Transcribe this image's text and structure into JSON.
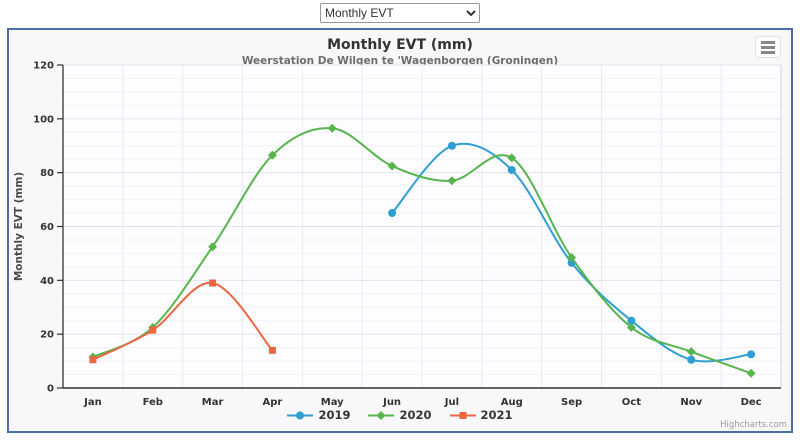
{
  "toolbar": {
    "select_value": "Monthly EVT"
  },
  "chart": {
    "menu_icon": "hamburger-menu-icon",
    "credits": "Highcharts.com",
    "background": "#f8f8fb",
    "plot_background": "#fdfdff",
    "border_color": "#4a6fa5"
  },
  "chart_data": {
    "type": "line",
    "title": "Monthly EVT (mm)",
    "subtitle": "Weerstation De Wilgen te 'Wagenborgen (Groningen)",
    "categories": [
      "Jan",
      "Feb",
      "Mar",
      "Apr",
      "May",
      "Jun",
      "Jul",
      "Aug",
      "Sep",
      "Oct",
      "Nov",
      "Dec"
    ],
    "xlabel": "",
    "ylabel": "Monthly EVT (mm)",
    "ylim": [
      0,
      120
    ],
    "tick_interval": 20,
    "minor_tick_interval": 5,
    "grid": true,
    "legend_position": "bottom",
    "series": [
      {
        "name": "2019",
        "color": "#2f9ed1",
        "marker": "circle",
        "values": [
          null,
          null,
          null,
          null,
          null,
          65,
          90,
          81,
          46.5,
          25,
          10.5,
          12.5
        ]
      },
      {
        "name": "2020",
        "color": "#58b44c",
        "marker": "diamond",
        "values": [
          11.5,
          22.5,
          52.5,
          86.5,
          96.5,
          82.5,
          77,
          85.5,
          48.5,
          22.5,
          13.5,
          5.5
        ]
      },
      {
        "name": "2021",
        "color": "#ec6642",
        "marker": "square",
        "values": [
          10.5,
          21.5,
          39,
          14,
          null,
          null,
          null,
          null,
          null,
          null,
          null,
          null
        ]
      }
    ]
  }
}
